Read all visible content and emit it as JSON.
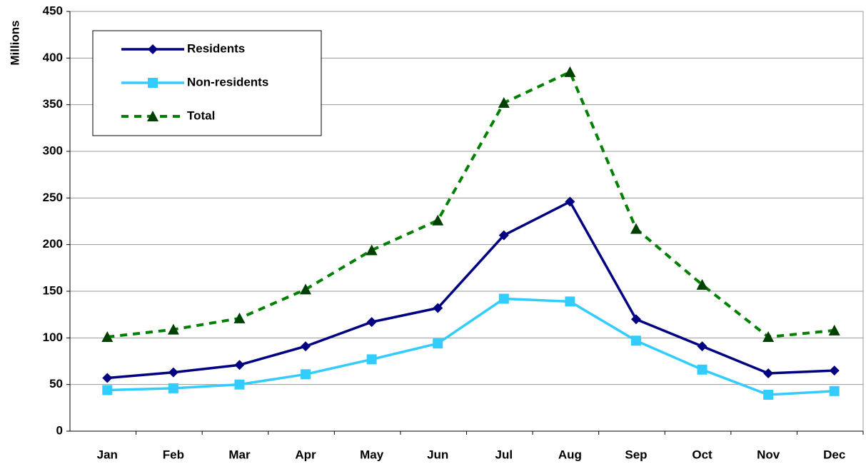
{
  "chart_data": {
    "type": "line",
    "y_label": "Millions",
    "categories": [
      "Jan",
      "Feb",
      "Mar",
      "Apr",
      "May",
      "Jun",
      "Jul",
      "Aug",
      "Sep",
      "Oct",
      "Nov",
      "Dec"
    ],
    "series": [
      {
        "name": "Residents",
        "color": "#000080",
        "marker": "diamond",
        "dashed": false,
        "values": [
          57,
          63,
          71,
          91,
          117,
          132,
          210,
          246,
          120,
          91,
          62,
          65
        ]
      },
      {
        "name": "Non-residents",
        "color": "#33ccff",
        "marker": "square",
        "dashed": false,
        "values": [
          44,
          46,
          50,
          61,
          77,
          94,
          142,
          139,
          97,
          66,
          39,
          43
        ]
      },
      {
        "name": "Total",
        "color": "#008000",
        "marker": "triangle",
        "dashed": true,
        "values": [
          101,
          109,
          121,
          152,
          194,
          226,
          352,
          385,
          217,
          157,
          101,
          108
        ]
      }
    ],
    "ylim": [
      0,
      450
    ],
    "yticks": [
      0,
      50,
      100,
      150,
      200,
      250,
      300,
      350,
      400,
      450
    ],
    "grid": true
  }
}
